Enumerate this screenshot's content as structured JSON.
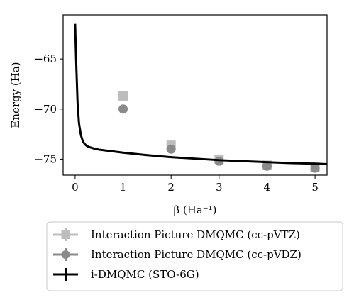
{
  "chart_data": {
    "type": "scatter",
    "xlabel": "β (Ha⁻¹)",
    "ylabel": "Energy (Ha)",
    "xlim": [
      -0.25,
      5.25
    ],
    "ylim": [
      -76.6,
      -60.6
    ],
    "xticks": [
      0,
      1,
      2,
      3,
      4,
      5
    ],
    "yticks": [
      -75,
      -70,
      -65
    ],
    "xtick_labels": [
      "0",
      "1",
      "2",
      "3",
      "4",
      "5"
    ],
    "ytick_labels": [
      "−75",
      "−70",
      "−65"
    ],
    "grid": false,
    "legend_position": "below",
    "series": [
      {
        "name": "Interaction Picture DMQMC (cc-pVTZ)",
        "kind": "scatter",
        "marker": "square",
        "color": "#bdbdbd",
        "x": [
          1,
          2,
          3,
          4,
          5
        ],
        "y": [
          -68.7,
          -73.6,
          -75.0,
          -75.6,
          -75.8
        ]
      },
      {
        "name": "Interaction Picture DMQMC (cc-pVDZ)",
        "kind": "scatter",
        "marker": "circle",
        "color": "#8a8a8a",
        "x": [
          1,
          2,
          3,
          4,
          5
        ],
        "y": [
          -70.0,
          -74.0,
          -75.2,
          -75.7,
          -75.9
        ]
      },
      {
        "name": "i-DMQMC (STO-6G)",
        "kind": "line",
        "color": "#000000",
        "x": [
          0.0,
          0.02,
          0.05,
          0.08,
          0.12,
          0.16,
          0.2,
          0.25,
          0.3,
          0.4,
          0.5,
          0.75,
          1.0,
          1.5,
          2.0,
          2.5,
          3.0,
          3.5,
          4.0,
          4.5,
          5.0,
          5.25
        ],
        "y": [
          -61.5,
          -65.0,
          -69.3,
          -71.4,
          -72.6,
          -73.2,
          -73.5,
          -73.7,
          -73.8,
          -73.95,
          -74.05,
          -74.2,
          -74.35,
          -74.6,
          -74.8,
          -74.95,
          -75.1,
          -75.2,
          -75.3,
          -75.4,
          -75.45,
          -75.5
        ]
      }
    ]
  }
}
